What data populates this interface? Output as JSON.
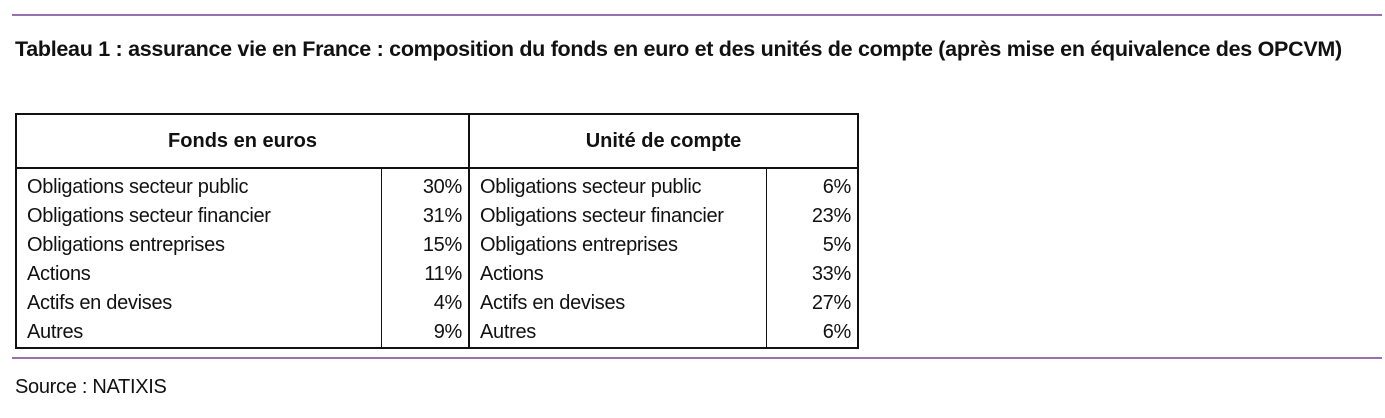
{
  "header": {
    "title": "Tableau 1 : assurance vie en France : composition du fonds en euro et des unités de compte (après mise en équivalence des OPCVM)"
  },
  "table": {
    "columns": [
      "Fonds en euros",
      "Unité de compte"
    ],
    "rows": [
      [
        "Obligations secteur public",
        "30%",
        "Obligations secteur public",
        "6%"
      ],
      [
        "Obligations secteur financier",
        "31%",
        "Obligations secteur financier",
        "23%"
      ],
      [
        "Obligations entreprises",
        "15%",
        "Obligations entreprises",
        "5%"
      ],
      [
        "Actions",
        "11%",
        "Actions",
        "33%"
      ],
      [
        "Actifs en devises",
        "4%",
        "Actifs en devises",
        "27%"
      ],
      [
        "Autres",
        "9%",
        "Autres",
        "6%"
      ]
    ]
  },
  "footer": {
    "source": "Source : NATIXIS"
  }
}
